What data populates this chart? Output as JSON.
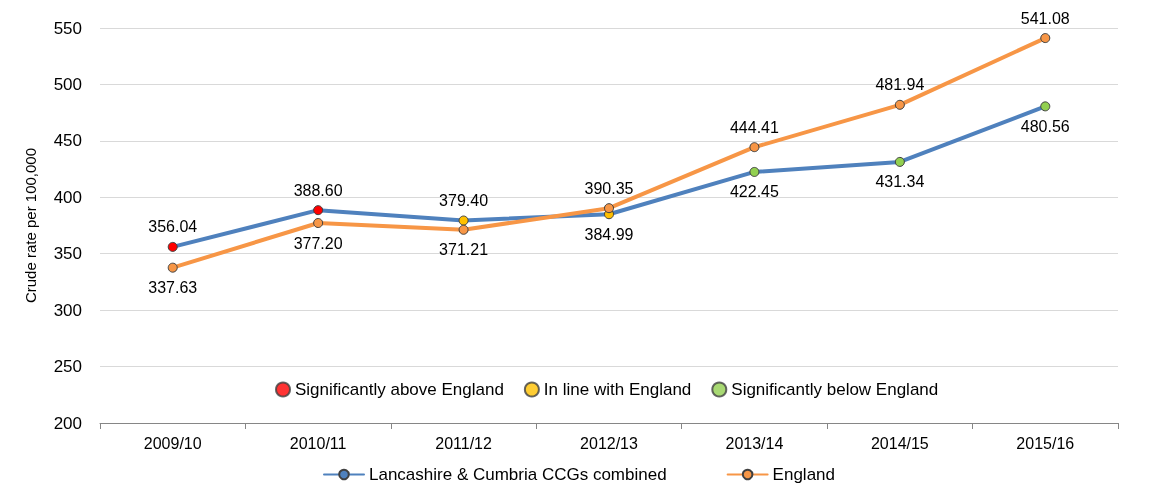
{
  "chart_data": {
    "type": "line",
    "ylabel": "Crude rate per 100,000",
    "categories": [
      "2009/10",
      "2010/11",
      "2011/12",
      "2012/13",
      "2013/14",
      "2014/15",
      "2015/16"
    ],
    "series": [
      {
        "name": "Lancashire & Cumbria CCGs combined",
        "color": "#4f81bd",
        "values": [
          356.04,
          388.6,
          379.4,
          384.99,
          422.45,
          431.34,
          480.56
        ],
        "value_labels": [
          "356.04",
          "388.60",
          "379.40",
          "384.99",
          "422.45",
          "431.34",
          "480.56"
        ],
        "colors": [
          "#ff0000",
          "#ff0000",
          "#ffc000",
          "#ffc000",
          "#92d050",
          "#92d050",
          "#92d050"
        ]
      },
      {
        "name": "England",
        "color": "#f79646",
        "values": [
          337.63,
          377.2,
          371.21,
          390.35,
          444.41,
          481.94,
          541.08
        ],
        "value_labels": [
          "337.63",
          "377.20",
          "371.21",
          "390.35",
          "444.41",
          "481.94",
          "541.08"
        ]
      },
      {
        "type": "scatter",
        "name": "Significantly above England",
        "color": "#ff0000",
        "values": [
          null,
          null,
          null,
          null,
          null,
          null,
          null
        ]
      },
      {
        "type": "scatter",
        "name": "In line with England",
        "color": "#ffc000",
        "values": [
          null,
          null,
          null,
          null,
          null,
          null,
          null
        ]
      },
      {
        "type": "scatter",
        "name": "Significantly below England",
        "color": "#92d050",
        "values": [
          null,
          null,
          null,
          null,
          null,
          null,
          null
        ]
      }
    ],
    "ylim": [
      200,
      550
    ],
    "yticks": [
      200,
      250,
      300,
      350,
      400,
      450,
      500,
      550
    ],
    "grid": "y",
    "legend": "bottom",
    "marker": "circle",
    "line_style": "solid"
  }
}
